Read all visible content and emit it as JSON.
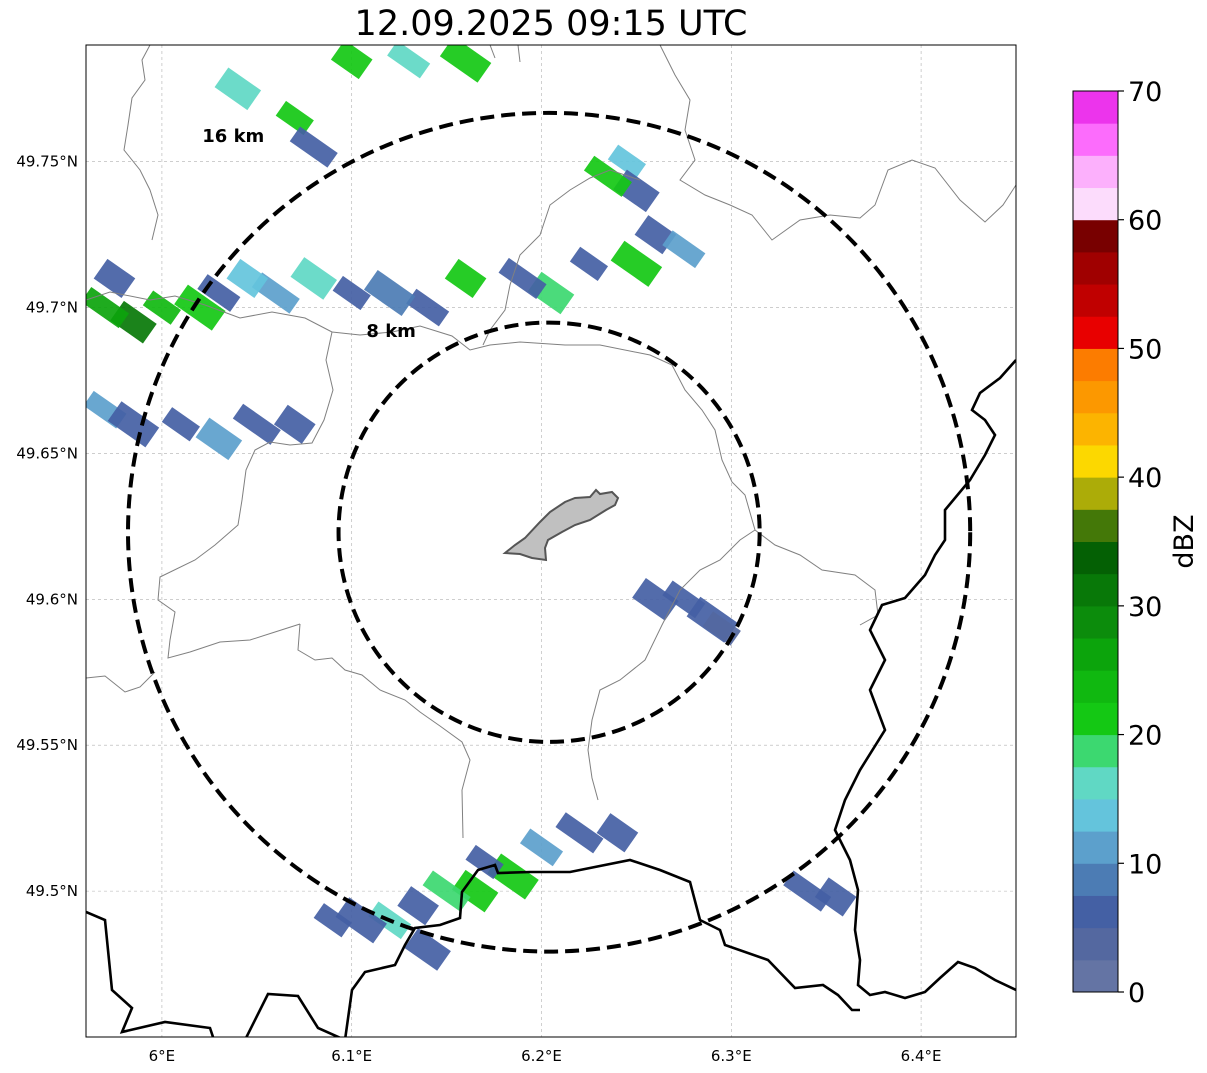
{
  "title": "12.09.2025 09:15 UTC",
  "map": {
    "lon_range": [
      5.96,
      6.45
    ],
    "lat_range": [
      49.45,
      49.79
    ],
    "center": {
      "lon": 6.204,
      "lat": 49.623
    },
    "lon_ticks": [
      {
        "value": 6.0,
        "label": "6°E"
      },
      {
        "value": 6.1,
        "label": "6.1°E"
      },
      {
        "value": 6.2,
        "label": "6.2°E"
      },
      {
        "value": 6.3,
        "label": "6.3°E"
      },
      {
        "value": 6.4,
        "label": "6.4°E"
      }
    ],
    "lat_ticks": [
      {
        "value": 49.75,
        "label": "49.75°N"
      },
      {
        "value": 49.7,
        "label": "49.7°N"
      },
      {
        "value": 49.65,
        "label": "49.65°N"
      },
      {
        "value": 49.6,
        "label": "49.6°N"
      },
      {
        "value": 49.55,
        "label": "49.55°N"
      },
      {
        "value": 49.5,
        "label": "49.5°N"
      }
    ],
    "grid": true,
    "range_rings": [
      {
        "radius_km": 8,
        "label": "8 km"
      },
      {
        "radius_km": 16,
        "label": "16 km"
      }
    ],
    "colors": {
      "ring": "#000000",
      "border": "#000000",
      "admin": "#808080",
      "city": "#c0c0c0",
      "city_edge": "#555555"
    }
  },
  "colorbar": {
    "label": "dBZ",
    "min": 0,
    "max": 70,
    "ticks": [
      {
        "value": 0,
        "label": "0"
      },
      {
        "value": 10,
        "label": "10"
      },
      {
        "value": 20,
        "label": "20"
      },
      {
        "value": 30,
        "label": "30"
      },
      {
        "value": 40,
        "label": "40"
      },
      {
        "value": 50,
        "label": "50"
      },
      {
        "value": 60,
        "label": "60"
      },
      {
        "value": 70,
        "label": "70"
      }
    ],
    "colors": [
      "#6474a4",
      "#5468a0",
      "#4460a4",
      "#4c7cb4",
      "#5ca0cc",
      "#64c4dc",
      "#60d8c4",
      "#3cd870",
      "#14c814",
      "#10b810",
      "#0ca40c",
      "#0c8c0c",
      "#087808",
      "#046004",
      "#447808",
      "#acac08",
      "#fcd800",
      "#fcb400",
      "#fc9800",
      "#fc7c00",
      "#e80000",
      "#c00000",
      "#a00000",
      "#780000",
      "#fcdcfc",
      "#fcb0fc",
      "#fc6cfc",
      "#ec34ec"
    ]
  },
  "radar_echoes": [
    {
      "lon": 6.07,
      "lat": 49.765,
      "dbz": 20
    },
    {
      "lon": 6.04,
      "lat": 49.775,
      "dbz": 15
    },
    {
      "lon": 6.08,
      "lat": 49.755,
      "dbz": 5
    },
    {
      "lon": 6.1,
      "lat": 49.785,
      "dbz": 22
    },
    {
      "lon": 6.13,
      "lat": 49.785,
      "dbz": 17
    },
    {
      "lon": 6.16,
      "lat": 49.785,
      "dbz": 22
    },
    {
      "lon": 6.245,
      "lat": 49.75,
      "dbz": 14
    },
    {
      "lon": 6.25,
      "lat": 49.74,
      "dbz": 5
    },
    {
      "lon": 6.235,
      "lat": 49.745,
      "dbz": 22
    },
    {
      "lon": 6.26,
      "lat": 49.725,
      "dbz": 5
    },
    {
      "lon": 6.275,
      "lat": 49.72,
      "dbz": 12
    },
    {
      "lon": 6.25,
      "lat": 49.715,
      "dbz": 20
    },
    {
      "lon": 6.225,
      "lat": 49.715,
      "dbz": 5
    },
    {
      "lon": 6.205,
      "lat": 49.705,
      "dbz": 18
    },
    {
      "lon": 6.19,
      "lat": 49.71,
      "dbz": 5
    },
    {
      "lon": 6.16,
      "lat": 49.71,
      "dbz": 22
    },
    {
      "lon": 6.14,
      "lat": 49.7,
      "dbz": 5
    },
    {
      "lon": 6.12,
      "lat": 49.705,
      "dbz": 8
    },
    {
      "lon": 6.1,
      "lat": 49.705,
      "dbz": 5
    },
    {
      "lon": 6.08,
      "lat": 49.71,
      "dbz": 16
    },
    {
      "lon": 6.06,
      "lat": 49.705,
      "dbz": 10
    },
    {
      "lon": 6.045,
      "lat": 49.71,
      "dbz": 14
    },
    {
      "lon": 6.03,
      "lat": 49.705,
      "dbz": 5
    },
    {
      "lon": 6.02,
      "lat": 49.7,
      "dbz": 22
    },
    {
      "lon": 6.0,
      "lat": 49.7,
      "dbz": 24
    },
    {
      "lon": 5.985,
      "lat": 49.695,
      "dbz": 30
    },
    {
      "lon": 5.97,
      "lat": 49.7,
      "dbz": 26
    },
    {
      "lon": 5.975,
      "lat": 49.71,
      "dbz": 5
    },
    {
      "lon": 5.97,
      "lat": 49.665,
      "dbz": 12
    },
    {
      "lon": 5.985,
      "lat": 49.66,
      "dbz": 5
    },
    {
      "lon": 6.01,
      "lat": 49.66,
      "dbz": 5
    },
    {
      "lon": 6.03,
      "lat": 49.655,
      "dbz": 12
    },
    {
      "lon": 6.05,
      "lat": 49.66,
      "dbz": 5
    },
    {
      "lon": 6.07,
      "lat": 49.66,
      "dbz": 5
    },
    {
      "lon": 6.275,
      "lat": 49.6,
      "dbz": 5
    },
    {
      "lon": 6.29,
      "lat": 49.593,
      "dbz": 5
    },
    {
      "lon": 6.295,
      "lat": 49.59,
      "dbz": 3
    },
    {
      "lon": 6.26,
      "lat": 49.6,
      "dbz": 5
    },
    {
      "lon": 6.22,
      "lat": 49.52,
      "dbz": 5
    },
    {
      "lon": 6.24,
      "lat": 49.52,
      "dbz": 5
    },
    {
      "lon": 6.2,
      "lat": 49.515,
      "dbz": 12
    },
    {
      "lon": 6.185,
      "lat": 49.505,
      "dbz": 22
    },
    {
      "lon": 6.17,
      "lat": 49.51,
      "dbz": 5
    },
    {
      "lon": 6.165,
      "lat": 49.5,
      "dbz": 22
    },
    {
      "lon": 6.15,
      "lat": 49.5,
      "dbz": 18
    },
    {
      "lon": 6.135,
      "lat": 49.495,
      "dbz": 5
    },
    {
      "lon": 6.12,
      "lat": 49.49,
      "dbz": 17
    },
    {
      "lon": 6.105,
      "lat": 49.49,
      "dbz": 5
    },
    {
      "lon": 6.09,
      "lat": 49.49,
      "dbz": 5
    },
    {
      "lon": 6.14,
      "lat": 49.48,
      "dbz": 5
    },
    {
      "lon": 6.34,
      "lat": 49.5,
      "dbz": 5
    },
    {
      "lon": 6.355,
      "lat": 49.498,
      "dbz": 5
    }
  ]
}
